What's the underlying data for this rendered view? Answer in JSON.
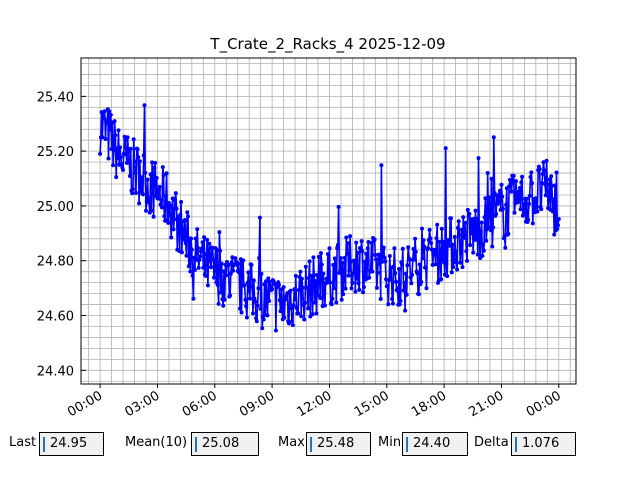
{
  "chart_data": {
    "type": "line",
    "title": "T_Crate_2_Racks_4 2025-12-09",
    "xlabel": "",
    "ylabel": "",
    "x_tick_labels": [
      "00:00",
      "03:00",
      "06:00",
      "09:00",
      "12:00",
      "15:00",
      "18:00",
      "21:00",
      "00:00"
    ],
    "x_tick_hours": [
      0,
      3,
      6,
      9,
      12,
      15,
      18,
      21,
      24
    ],
    "xlim_hours": [
      -1.0,
      24.9
    ],
    "y_tick_labels": [
      "24.40",
      "24.60",
      "24.80",
      "25.00",
      "25.20",
      "25.40"
    ],
    "y_ticks": [
      24.4,
      24.6,
      24.8,
      25.0,
      25.2,
      25.4
    ],
    "ylim": [
      24.35,
      25.54
    ],
    "grid": true,
    "series": [
      {
        "color": "#0000ff",
        "marker": "circle",
        "x_hours": [
          0,
          0.5,
          1,
          1.5,
          2,
          2.5,
          3,
          3.5,
          4,
          4.5,
          5,
          5.5,
          6,
          6.5,
          7,
          7.5,
          8,
          8.5,
          9,
          9.5,
          10,
          10.5,
          11,
          11.5,
          12,
          12.5,
          13,
          13.5,
          14,
          14.5,
          15,
          15.5,
          16,
          16.5,
          17,
          17.5,
          18,
          18.5,
          19,
          19.5,
          20,
          20.5,
          21,
          21.5,
          22,
          22.5,
          23,
          23.5,
          24
        ],
        "y": [
          25.3,
          25.25,
          25.18,
          25.15,
          25.12,
          25.08,
          25.05,
          25.02,
          24.95,
          24.88,
          24.82,
          24.78,
          24.76,
          24.74,
          24.72,
          24.7,
          24.68,
          24.66,
          24.65,
          24.64,
          24.66,
          24.68,
          24.7,
          24.72,
          24.74,
          24.76,
          24.78,
          24.8,
          24.79,
          24.77,
          24.75,
          24.74,
          24.75,
          24.78,
          24.8,
          24.82,
          24.84,
          24.86,
          24.88,
          24.9,
          24.92,
          24.95,
          24.98,
          25.0,
          25.02,
          25.03,
          25.05,
          25.06,
          24.95
        ]
      }
    ],
    "noise_seed": 7
  },
  "stats": {
    "last_label": "Last",
    "last_value": "24.95",
    "mean_label": "Mean(10)",
    "mean_value": "25.08",
    "max_label": "Max",
    "max_value": "25.48",
    "min_label": "Min",
    "min_value": "24.40",
    "delta_label": "Delta",
    "delta_value": "1.076"
  }
}
